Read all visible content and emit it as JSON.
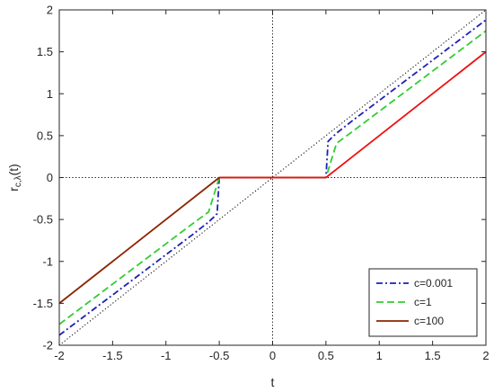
{
  "chart_data": {
    "type": "line",
    "xlabel": "t",
    "ylabel_main": "r",
    "ylabel_sub": "c,λ",
    "ylabel_arg": "(t)",
    "xlim": [
      -2,
      2
    ],
    "ylim": [
      -2,
      2
    ],
    "x_ticks": [
      -2,
      -1.5,
      -1,
      -0.5,
      0,
      0.5,
      1,
      1.5,
      2
    ],
    "x_tick_labels": [
      "-2",
      "-1.5",
      "-1",
      "-0.5",
      "0",
      "0.5",
      "1",
      "1.5",
      "2"
    ],
    "y_ticks": [
      -2,
      -1.5,
      -1,
      -0.5,
      0,
      0.5,
      1,
      1.5,
      2
    ],
    "y_tick_labels": [
      "-2",
      "-1.5",
      "-1",
      "-0.5",
      "0",
      "0.5",
      "1",
      "1.5",
      "2"
    ],
    "grid": false,
    "legend_position": "bottom-right",
    "reference_lines": [
      {
        "type": "identity",
        "color": "#000000",
        "style": "dotted"
      },
      {
        "type": "horizontal",
        "y": 0,
        "color": "#000000",
        "style": "dotted"
      },
      {
        "type": "vertical",
        "x": 0,
        "color": "#000000",
        "style": "dotted"
      }
    ],
    "series": [
      {
        "name": "c=0.001",
        "color": "#1f1fb4",
        "style": "dashdot",
        "x": [
          -2,
          -1.5,
          -1,
          -0.75,
          -0.6,
          -0.55,
          -0.52,
          -0.5,
          0.5,
          0.52,
          0.55,
          0.6,
          0.75,
          1,
          1.5,
          2
        ],
        "y": [
          -1.88,
          -1.4,
          -0.92,
          -0.68,
          -0.53,
          -0.47,
          -0.43,
          0,
          0,
          0.43,
          0.47,
          0.53,
          0.68,
          0.92,
          1.4,
          1.88
        ]
      },
      {
        "name": "c=1",
        "color": "#33cc33",
        "style": "dashed",
        "x": [
          -2,
          -1.5,
          -1,
          -0.75,
          -0.6,
          -0.5,
          0.5,
          0.6,
          0.75,
          1,
          1.5,
          2
        ],
        "y": [
          -1.75,
          -1.27,
          -0.79,
          -0.55,
          -0.41,
          0,
          0,
          0.41,
          0.55,
          0.79,
          1.27,
          1.75
        ]
      },
      {
        "name": "c=100",
        "color": "#8b2500",
        "style": "solid",
        "x": [
          -2,
          -0.5,
          0.5
        ],
        "y": [
          -1.5,
          0,
          0
        ]
      },
      {
        "name": "",
        "color": "#ee1111",
        "style": "solid",
        "x": [
          -0.5,
          0.5,
          2
        ],
        "y": [
          0,
          0,
          1.5
        ]
      }
    ]
  }
}
